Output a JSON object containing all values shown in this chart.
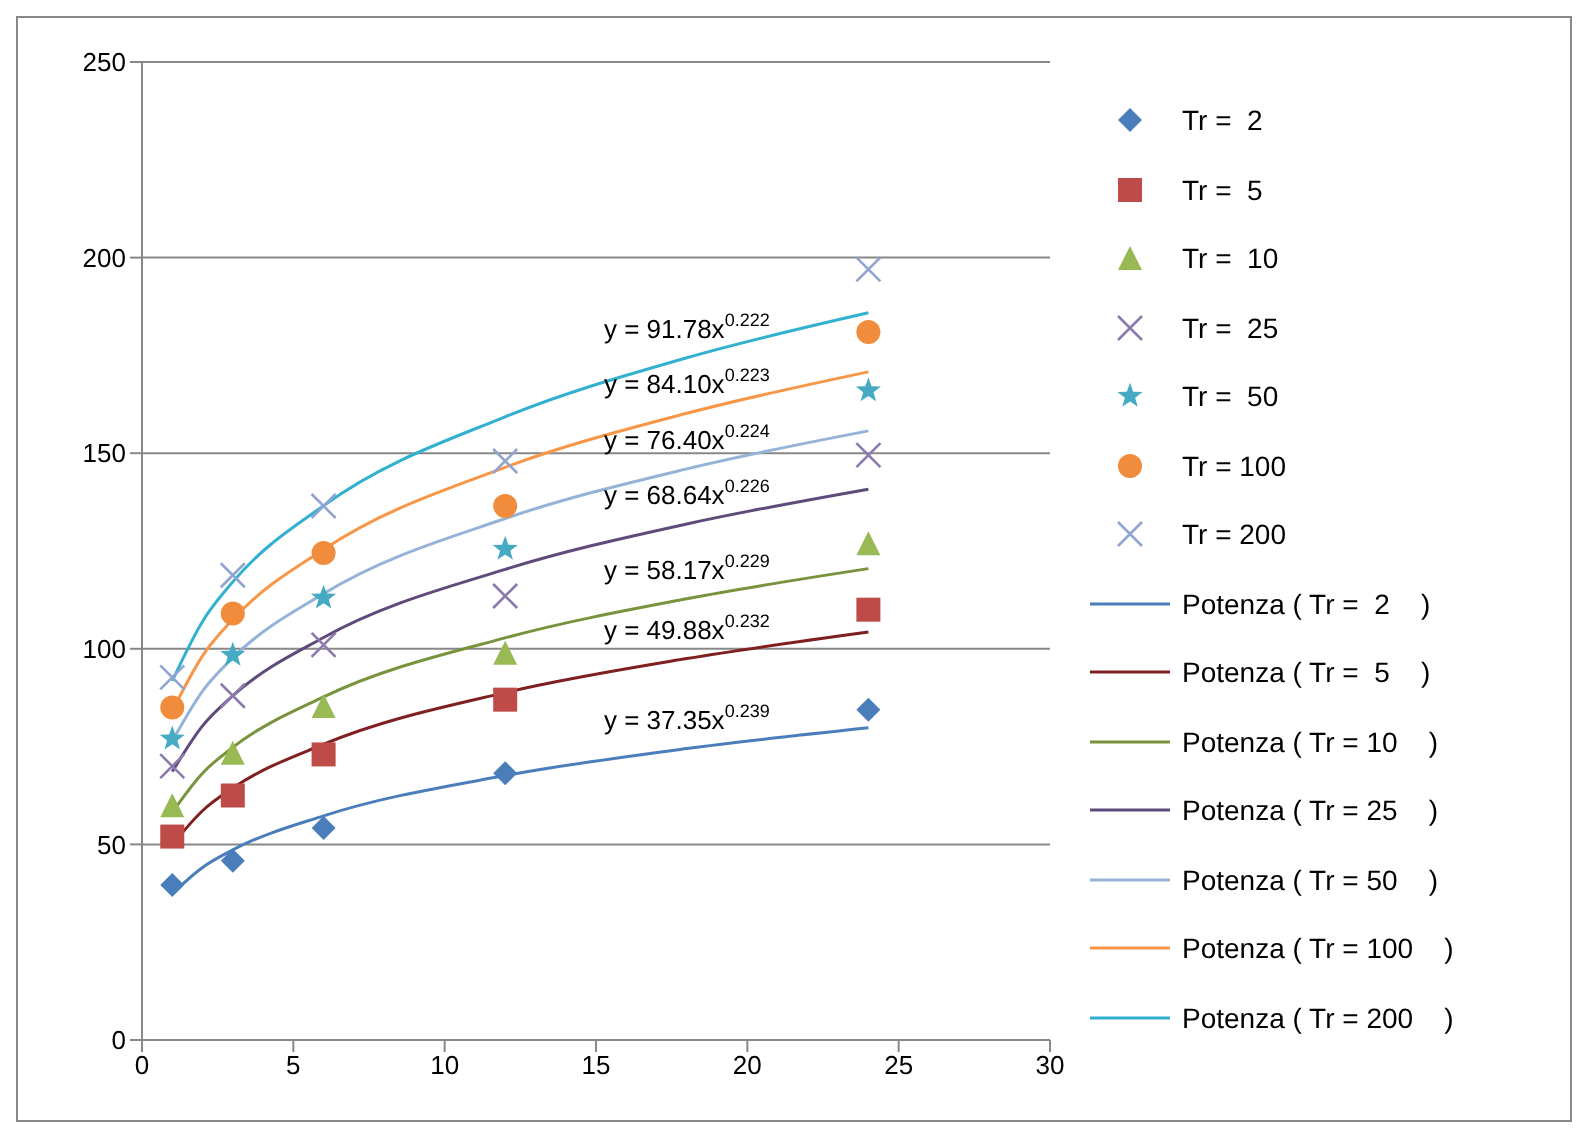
{
  "chart_data": {
    "type": "scatter",
    "xlim": [
      0,
      30
    ],
    "xticks": [
      0,
      5,
      10,
      15,
      20,
      25,
      30
    ],
    "ylim": [
      0,
      250
    ],
    "yticks": [
      0,
      50,
      100,
      150,
      200,
      250
    ],
    "grid": "y",
    "legend": "right",
    "series": [
      {
        "name": "Tr =  2",
        "marker": "diamond",
        "color": "#4a7ebb",
        "x": [
          1,
          3,
          6,
          12,
          24
        ],
        "values": [
          39.6,
          45.8,
          54.2,
          68.2,
          84.4
        ]
      },
      {
        "name": "Tr =  5",
        "marker": "square",
        "color": "#be4b48",
        "x": [
          1,
          3,
          6,
          12,
          24
        ],
        "values": [
          52,
          62.5,
          73,
          87,
          110
        ]
      },
      {
        "name": "Tr =  10",
        "marker": "triangle",
        "color": "#98b954",
        "x": [
          1,
          3,
          6,
          12,
          24
        ],
        "values": [
          60,
          73.4,
          85.4,
          99,
          127
        ]
      },
      {
        "name": "Tr =  25",
        "marker": "cross",
        "color": "#8c7aae",
        "x": [
          1,
          3,
          6,
          12,
          24
        ],
        "values": [
          70,
          88,
          101,
          113.5,
          149.5
        ]
      },
      {
        "name": "Tr =  50",
        "marker": "star",
        "color": "#46aac5",
        "x": [
          1,
          3,
          6,
          12,
          24
        ],
        "values": [
          77,
          98.4,
          113,
          125.5,
          166
        ]
      },
      {
        "name": "Tr = 100",
        "marker": "circle",
        "color": "#f08c3c",
        "x": [
          1,
          3,
          6,
          12,
          24
        ],
        "values": [
          85,
          109,
          124.5,
          136.5,
          181
        ]
      },
      {
        "name": "Tr = 200",
        "marker": "cross",
        "color": "#8fa4d0",
        "x": [
          1,
          3,
          6,
          12,
          24
        ],
        "values": [
          92.7,
          118.8,
          136.5,
          148,
          197
        ]
      },
      {
        "name": "Potenza ( Tr =  2    )",
        "type": "line",
        "marker": "none",
        "color": "#4a7ebb",
        "x": [
          1,
          2,
          3,
          6,
          12,
          18,
          24
        ],
        "values": [
          37.4,
          44.1,
          48.6,
          57.3,
          67.6,
          74.5,
          79.8
        ]
      },
      {
        "name": "Potenza ( Tr =  5    )",
        "type": "line",
        "marker": "none",
        "color": "#7f1f1f",
        "x": [
          1,
          2,
          3,
          6,
          12,
          18,
          24
        ],
        "values": [
          49.9,
          58.6,
          64.4,
          75.6,
          88.8,
          97.5,
          104.3
        ]
      },
      {
        "name": "Potenza ( Tr = 10    )",
        "type": "line",
        "marker": "none",
        "color": "#77933c",
        "x": [
          1,
          2,
          3,
          6,
          12,
          18,
          24
        ],
        "values": [
          58.2,
          68.2,
          74.8,
          87.7,
          102.8,
          112.8,
          120.5
        ]
      },
      {
        "name": "Potenza ( Tr = 25    )",
        "type": "line",
        "marker": "none",
        "color": "#604a7b",
        "x": [
          1,
          2,
          3,
          6,
          12,
          18,
          24
        ],
        "values": [
          68.6,
          80.3,
          88,
          102.9,
          120.3,
          131.9,
          140.8
        ]
      },
      {
        "name": "Potenza ( Tr = 50    )",
        "type": "line",
        "marker": "none",
        "color": "#95b3d7",
        "x": [
          1,
          2,
          3,
          6,
          12,
          18,
          24
        ],
        "values": [
          76.4,
          89.2,
          97.7,
          114.1,
          133.3,
          146,
          155.7
        ]
      },
      {
        "name": "Potenza ( Tr = 100    )",
        "type": "line",
        "marker": "none",
        "color": "#f79646",
        "x": [
          1,
          2,
          3,
          6,
          12,
          18,
          24
        ],
        "values": [
          84.1,
          98.2,
          107.5,
          125.4,
          146.4,
          160.2,
          170.8
        ]
      },
      {
        "name": "Potenza ( Tr = 200    )",
        "type": "line",
        "marker": "none",
        "color": "#31b0d0",
        "x": [
          1,
          2,
          3,
          6,
          12,
          18,
          24
        ],
        "values": [
          91.8,
          107,
          117.1,
          136.6,
          159.3,
          174.4,
          185.9
        ]
      }
    ],
    "annotations": [
      "y = 91.78x$^{0.222}$",
      "y = 84.10x$^{0.223}$",
      "y = 76.40x$^{0.224}$",
      "y = 68.64x$^{0.226}$",
      "y = 58.17x$^{0.229}$",
      "y = 49.88x$^{0.232}$",
      "y = 37.35x$^{0.239}$"
    ]
  }
}
